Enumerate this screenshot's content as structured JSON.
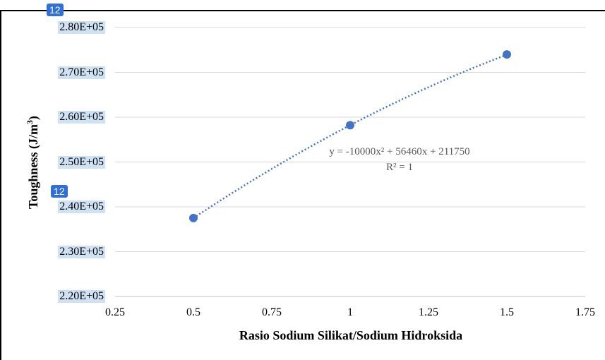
{
  "badges": [
    "12",
    "12"
  ],
  "chart_data": {
    "type": "scatter",
    "xlabel": "Rasio Sodium Silikat/Sodium Hidroksida",
    "ylabel": "Toughness (J/m",
    "ylabel_sup": "3",
    "ylabel_close": ")",
    "xlim": [
      0.25,
      1.75
    ],
    "ylim": [
      220000,
      280000
    ],
    "xticks": [
      "0.25",
      "0.5",
      "0.75",
      "1",
      "1.25",
      "1.5",
      "1.75"
    ],
    "yticks": [
      "2.20E+05",
      "2.30E+05",
      "2.40E+05",
      "2.50E+05",
      "2.60E+05",
      "2.70E+05",
      "2.80E+05"
    ],
    "grid": true,
    "series": [
      {
        "x": [
          0.5,
          1.0,
          1.5
        ],
        "y": [
          237500,
          258200,
          274000
        ]
      }
    ],
    "trendline": {
      "type": "polynomial",
      "coefficients": [
        -10000,
        56460,
        211750
      ],
      "equation": "y = -10000x² + 56460x + 211750",
      "r_squared": "R² = 1"
    },
    "colors": {
      "marker": "#4472c4",
      "grid": "#d9d9d9",
      "trend": "#4472c4",
      "label_text": "#595959"
    }
  }
}
